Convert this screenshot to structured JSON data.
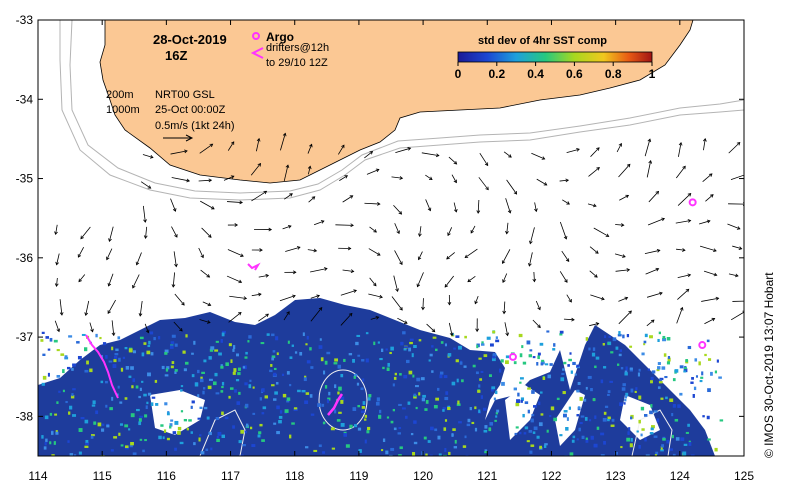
{
  "title": {
    "date": "28-Oct-2019",
    "hour": "16Z"
  },
  "legend": {
    "argo_label": "Argo",
    "drifters_label": "drifters@12h",
    "drifters_range": "to 29/10 12Z",
    "argo_color": "#ff33ff"
  },
  "info": {
    "contour_200": "200m",
    "contour_1000": "1000m",
    "product": "NRT00 GSL",
    "product_time": "25-Oct 00:00Z",
    "velocity_scale": "0.5m/s (1kt 24h)"
  },
  "colorbar": {
    "title": "std dev of 4hr SST comp",
    "min": 0,
    "max": 1,
    "ticks": [
      "0",
      "0.2",
      "0.4",
      "0.6",
      "0.8",
      "1"
    ]
  },
  "axes": {
    "x_ticks": [
      "114",
      "115",
      "116",
      "117",
      "118",
      "119",
      "120",
      "121",
      "122",
      "123",
      "124",
      "125"
    ],
    "y_ticks": [
      "-33",
      "-34",
      "-35",
      "-36",
      "-37",
      "-38"
    ],
    "xlim": [
      114,
      125
    ],
    "ylim": [
      -38.5,
      -33
    ]
  },
  "credit": "© IMOS 30-Oct-2019 13:07 Hobart",
  "colors": {
    "land": "#fbc894",
    "data_deep": "#1e3c9c",
    "contour": "#b4b4b4"
  },
  "argo_floats": [
    {
      "lon": 124.2,
      "lat": -35.3
    },
    {
      "lon": 121.4,
      "lat": -37.25
    },
    {
      "lon": 124.35,
      "lat": -37.1
    }
  ]
}
